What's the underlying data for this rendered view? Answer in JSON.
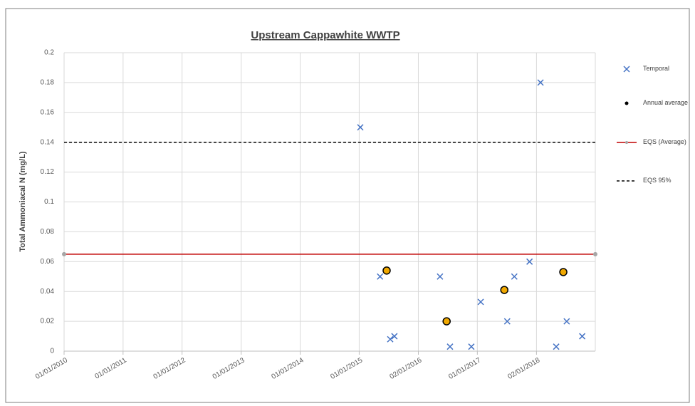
{
  "chart_data": {
    "type": "scatter",
    "title": "Upstream Cappawhite WWTP",
    "y_label": "Total Ammoniacal N (mg/L)",
    "xlim": [
      "2010-01-01",
      "2019-01-01"
    ],
    "xticks": [
      {
        "value": "2010-01-01",
        "label": "01/01/2010"
      },
      {
        "value": "2011-01-01",
        "label": "01/01/2011"
      },
      {
        "value": "2012-01-01",
        "label": "01/01/2012"
      },
      {
        "value": "2013-01-01",
        "label": "01/01/2013"
      },
      {
        "value": "2014-01-01",
        "label": "01/01/2014"
      },
      {
        "value": "2015-01-01",
        "label": "01/01/2015"
      },
      {
        "value": "2016-01-02",
        "label": "02/01/2016"
      },
      {
        "value": "2017-01-01",
        "label": "01/01/2017"
      },
      {
        "value": "2018-01-02",
        "label": "02/01/2018"
      }
    ],
    "ylim": [
      0,
      0.2
    ],
    "yticks": [
      0,
      0.02,
      0.04,
      0.06,
      0.08,
      0.1,
      0.12,
      0.14,
      0.16,
      0.18,
      0.2
    ],
    "grid": true,
    "legend": "right",
    "series": [
      {
        "name": "Temporal",
        "color": "#4472c4",
        "marker": "x",
        "line": "none",
        "x": [
          "2015-01-08",
          "2015-05-10",
          "2015-07-12",
          "2015-08-07",
          "2016-05-15",
          "2016-07-16",
          "2016-11-25",
          "2017-01-22",
          "2017-07-05",
          "2017-08-18",
          "2017-11-20",
          "2018-01-27",
          "2018-05-04",
          "2018-07-08",
          "2018-10-12"
        ],
        "values": [
          0.15,
          0.05,
          0.008,
          0.01,
          0.05,
          0.003,
          0.003,
          0.033,
          0.02,
          0.05,
          0.06,
          0.18,
          0.003,
          0.02,
          0.01
        ]
      },
      {
        "name": "Annual average",
        "color": "#f0a800",
        "marker": "circle",
        "line": "none",
        "x": [
          "2015-06-20",
          "2016-06-25",
          "2017-06-17",
          "2018-06-17"
        ],
        "values": [
          0.054,
          0.02,
          0.041,
          0.053
        ]
      },
      {
        "name": "EQS (Average)",
        "color": "#c00000",
        "marker": "dot",
        "line": "solid",
        "x": [
          "2010-01-01",
          "2019-01-01"
        ],
        "values": [
          0.065,
          0.065
        ]
      },
      {
        "name": "EQS 95%",
        "color": "#000000",
        "marker": "none",
        "line": "dashed",
        "x": [
          "2010-01-01",
          "2019-01-01"
        ],
        "values": [
          0.14,
          0.14
        ]
      }
    ]
  }
}
